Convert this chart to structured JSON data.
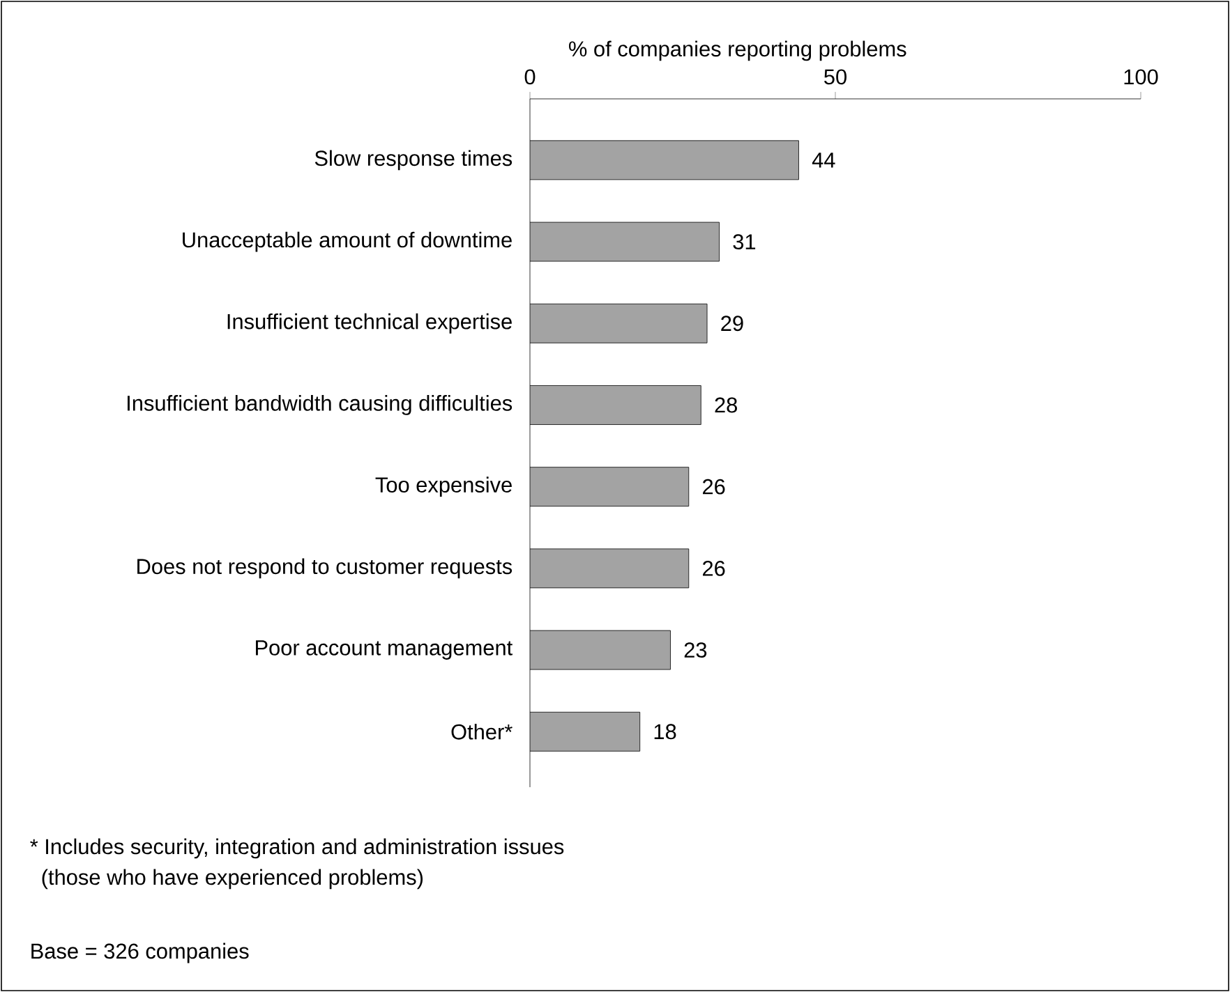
{
  "chart_data": {
    "type": "bar",
    "orientation": "horizontal",
    "xlabel": "% of companies reporting problems",
    "categories": [
      "Slow response times",
      "Unacceptable amount of downtime",
      "Insufficient technical expertise",
      "Insufficient bandwidth causing difficulties",
      "Too expensive",
      "Does not respond to customer requests",
      "Poor account management",
      "Other*"
    ],
    "values": [
      44,
      31,
      29,
      28,
      26,
      26,
      23,
      18
    ],
    "color": "#a3a3a3",
    "xlim": [
      0,
      100
    ],
    "xticks": [
      0,
      50,
      100
    ],
    "data_labels": true,
    "annotations": [
      "* Includes security, integration and administration issues",
      "(those who have experienced problems)",
      "Base = 326 companies"
    ]
  }
}
